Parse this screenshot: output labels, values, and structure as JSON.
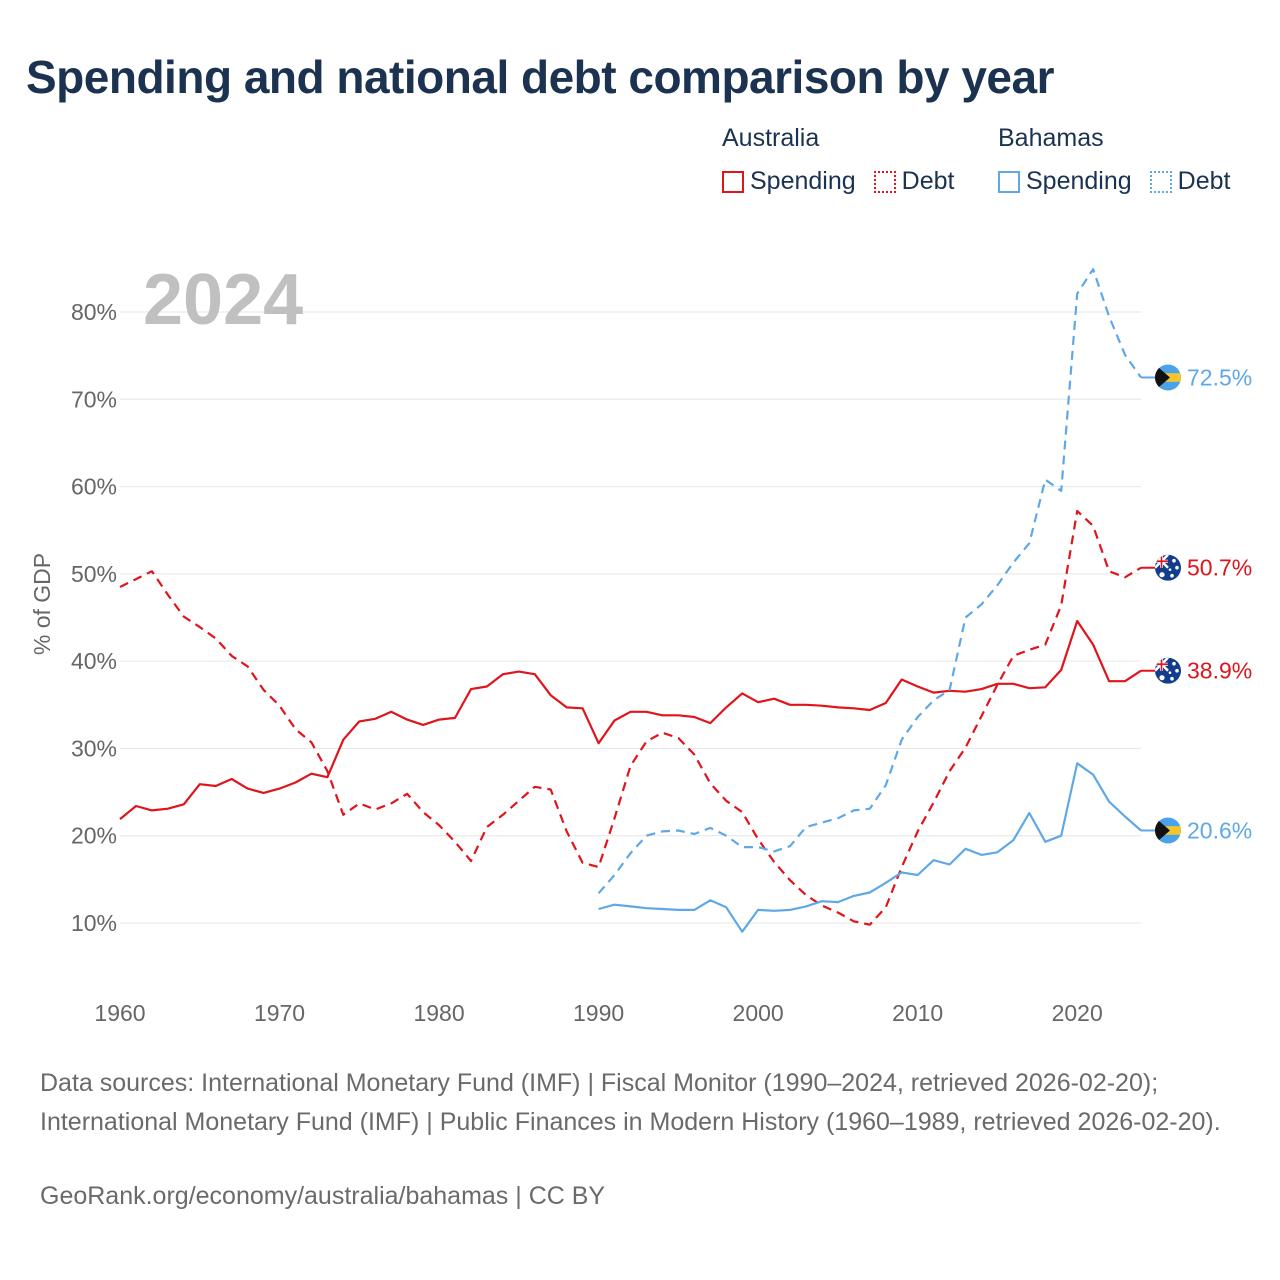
{
  "title": "Spending and national debt comparison by year",
  "legend": {
    "australia": {
      "title": "Australia",
      "spending": "Spending",
      "debt": "Debt"
    },
    "bahamas": {
      "title": "Bahamas",
      "spending": "Spending",
      "debt": "Debt"
    }
  },
  "colors": {
    "australia": "#e0141b",
    "bahamas": "#5ea8e8",
    "year_label": "#c0c0c0"
  },
  "footer": {
    "sources": "Data sources: International Monetary Fund (IMF) | Fiscal Monitor (1990–2024, retrieved 2026-02-20); International Monetary Fund (IMF) | Public Finances in Modern History (1960–1989, retrieved 2026-02-20).",
    "credit": "GeoRank.org/economy/australia/bahamas | CC BY"
  },
  "chart_data": {
    "type": "line",
    "year_label": "2024",
    "ylabel": "% of GDP",
    "xlabel": "",
    "xlim": [
      1960,
      2024
    ],
    "ylim": [
      10,
      80
    ],
    "x_ticks": [
      1960,
      1970,
      1980,
      1990,
      2000,
      2010,
      2020
    ],
    "y_ticks": [
      10,
      20,
      30,
      40,
      50,
      60,
      70,
      80
    ],
    "y_tick_suffix": "%",
    "series": [
      {
        "name": "Australia Spending",
        "country": "australia",
        "style": "solid",
        "end_label": "38.9%",
        "x_start": 1960,
        "values": [
          21.9,
          23.4,
          22.9,
          23.1,
          23.6,
          25.9,
          25.7,
          26.5,
          25.4,
          24.9,
          25.4,
          26.1,
          27.1,
          26.7,
          31.0,
          33.1,
          33.4,
          34.2,
          33.3,
          32.7,
          33.3,
          33.5,
          36.8,
          37.1,
          38.5,
          38.8,
          38.5,
          36.1,
          34.7,
          34.6,
          30.6,
          33.2,
          34.2,
          34.2,
          33.8,
          33.8,
          33.6,
          32.9,
          34.7,
          36.3,
          35.3,
          35.7,
          35.0,
          35.0,
          34.9,
          34.7,
          34.6,
          34.4,
          35.2,
          37.9,
          37.1,
          36.4,
          36.6,
          36.5,
          36.8,
          37.4,
          37.4,
          36.9,
          37.0,
          39.0,
          44.6,
          41.9,
          37.7,
          37.7,
          38.9
        ]
      },
      {
        "name": "Australia Debt",
        "country": "australia",
        "style": "dashed",
        "end_label": "50.7%",
        "x_start": 1960,
        "values": [
          48.5,
          49.4,
          50.3,
          47.6,
          45.1,
          43.9,
          42.6,
          40.6,
          39.4,
          36.7,
          34.9,
          32.2,
          30.7,
          27.4,
          22.4,
          23.7,
          23.0,
          23.7,
          24.8,
          22.7,
          21.2,
          19.3,
          17.1,
          21.0,
          22.4,
          24.0,
          25.6,
          25.3,
          20.5,
          16.9,
          16.4,
          22.0,
          28.0,
          30.8,
          31.8,
          31.2,
          29.3,
          26.0,
          24.0,
          22.7,
          19.6,
          17.0,
          14.9,
          13.2,
          12.0,
          11.2,
          10.2,
          9.8,
          11.8,
          16.4,
          20.5,
          23.8,
          27.4,
          30.1,
          33.7,
          37.3,
          40.6,
          41.3,
          41.9,
          46.4,
          57.2,
          55.5,
          50.3,
          49.6,
          50.7
        ]
      },
      {
        "name": "Bahamas Spending",
        "country": "bahamas",
        "style": "solid",
        "end_label": "20.6%",
        "x_start": 1990,
        "values": [
          11.6,
          12.1,
          11.9,
          11.7,
          11.6,
          11.5,
          11.5,
          12.6,
          11.8,
          9.0,
          11.5,
          11.4,
          11.5,
          11.9,
          12.5,
          12.4,
          13.1,
          13.5,
          14.6,
          15.8,
          15.5,
          17.2,
          16.7,
          18.5,
          17.8,
          18.1,
          19.5,
          22.6,
          19.3,
          20.0,
          28.3,
          27.0,
          23.9,
          22.2,
          20.6
        ]
      },
      {
        "name": "Bahamas Debt",
        "country": "bahamas",
        "style": "dashed",
        "end_label": "72.5%",
        "x_start": 1990,
        "values": [
          13.4,
          15.5,
          18.0,
          20.0,
          20.5,
          20.6,
          20.2,
          20.9,
          20.0,
          18.7,
          18.7,
          18.2,
          18.8,
          21.0,
          21.5,
          22.0,
          22.9,
          23.1,
          25.8,
          31.0,
          33.6,
          35.5,
          36.7,
          45.0,
          46.5,
          48.7,
          51.3,
          53.5,
          60.8,
          59.5,
          82.1,
          84.9,
          79.5,
          75.1,
          72.5
        ]
      }
    ]
  }
}
